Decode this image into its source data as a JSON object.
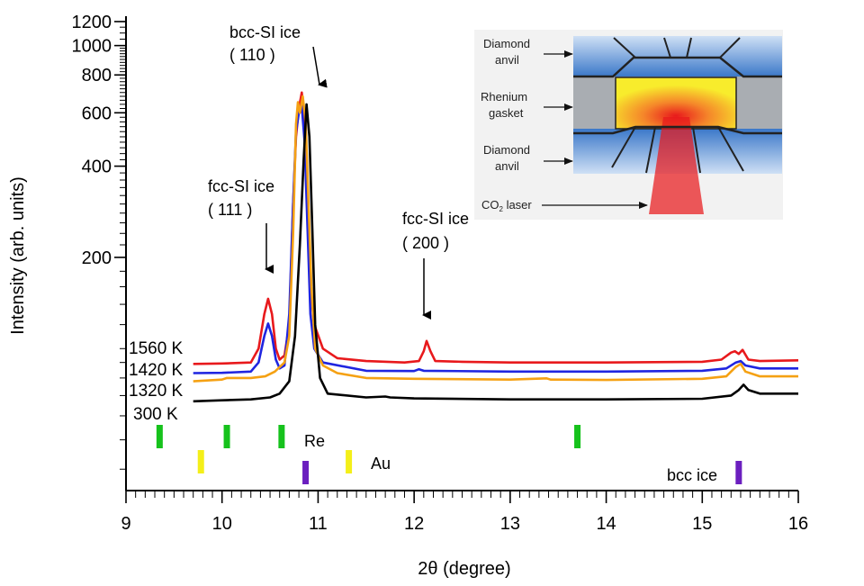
{
  "chart_data": {
    "type": "line",
    "xlabel": "2θ  (degree)",
    "ylabel": "Intensity (arb. units)",
    "xlim": [
      9,
      16
    ],
    "ylim": [
      34,
      1250
    ],
    "y_scale": "log",
    "x_ticks": [
      9,
      10,
      11,
      12,
      13,
      14,
      15,
      16
    ],
    "y_ticks": [
      200,
      400,
      600,
      800,
      1000,
      1200
    ],
    "grid": false,
    "series": [
      {
        "name": "1560 K",
        "color": "#e8191c",
        "points": [
          [
            9.7,
            89
          ],
          [
            10.0,
            89.3
          ],
          [
            10.3,
            90
          ],
          [
            10.38,
            100
          ],
          [
            10.44,
            130
          ],
          [
            10.48,
            146
          ],
          [
            10.52,
            130
          ],
          [
            10.56,
            100
          ],
          [
            10.6,
            92
          ],
          [
            10.65,
            95
          ],
          [
            10.7,
            120
          ],
          [
            10.74,
            300
          ],
          [
            10.77,
            500
          ],
          [
            10.8,
            620
          ],
          [
            10.83,
            700
          ],
          [
            10.86,
            560
          ],
          [
            10.89,
            300
          ],
          [
            10.92,
            160
          ],
          [
            10.96,
            120
          ],
          [
            11.05,
            100
          ],
          [
            11.2,
            93
          ],
          [
            11.5,
            91
          ],
          [
            11.9,
            90
          ],
          [
            12.05,
            91
          ],
          [
            12.1,
            98
          ],
          [
            12.13,
            106
          ],
          [
            12.17,
            98
          ],
          [
            12.22,
            91
          ],
          [
            12.5,
            90.5
          ],
          [
            13.0,
            90
          ],
          [
            14.0,
            90
          ],
          [
            15.0,
            90.5
          ],
          [
            15.2,
            92
          ],
          [
            15.3,
            97
          ],
          [
            15.34,
            98
          ],
          [
            15.38,
            96
          ],
          [
            15.42,
            99
          ],
          [
            15.48,
            92
          ],
          [
            15.6,
            91
          ],
          [
            16.0,
            91.5
          ]
        ]
      },
      {
        "name": "1420 K",
        "color": "#1f25e0",
        "points": [
          [
            9.7,
            83
          ],
          [
            10.0,
            83.2
          ],
          [
            10.3,
            84
          ],
          [
            10.38,
            90
          ],
          [
            10.44,
            110
          ],
          [
            10.48,
            121
          ],
          [
            10.52,
            110
          ],
          [
            10.56,
            92
          ],
          [
            10.6,
            86
          ],
          [
            10.65,
            88
          ],
          [
            10.7,
            130
          ],
          [
            10.74,
            300
          ],
          [
            10.77,
            520
          ],
          [
            10.8,
            600
          ],
          [
            10.83,
            630
          ],
          [
            10.86,
            480
          ],
          [
            10.89,
            250
          ],
          [
            10.92,
            130
          ],
          [
            10.96,
            100
          ],
          [
            11.05,
            90
          ],
          [
            11.5,
            84.5
          ],
          [
            12.0,
            84.3
          ],
          [
            12.05,
            85.5
          ],
          [
            12.1,
            84.5
          ],
          [
            13.0,
            84
          ],
          [
            14.0,
            84
          ],
          [
            15.0,
            84.5
          ],
          [
            15.25,
            86
          ],
          [
            15.35,
            90
          ],
          [
            15.4,
            91
          ],
          [
            15.45,
            88
          ],
          [
            15.6,
            86
          ],
          [
            16.0,
            86
          ]
        ]
      },
      {
        "name": "1320 K",
        "color": "#f5a113",
        "points": [
          [
            9.7,
            78
          ],
          [
            10.0,
            79
          ],
          [
            10.05,
            80
          ],
          [
            10.3,
            80
          ],
          [
            10.45,
            81
          ],
          [
            10.55,
            84
          ],
          [
            10.65,
            90
          ],
          [
            10.7,
            110
          ],
          [
            10.74,
            240
          ],
          [
            10.77,
            550
          ],
          [
            10.79,
            650
          ],
          [
            10.81,
            600
          ],
          [
            10.84,
            680
          ],
          [
            10.87,
            560
          ],
          [
            10.9,
            300
          ],
          [
            10.93,
            160
          ],
          [
            10.97,
            100
          ],
          [
            11.05,
            88
          ],
          [
            11.2,
            83
          ],
          [
            11.5,
            80
          ],
          [
            12.0,
            79.5
          ],
          [
            13.0,
            79
          ],
          [
            13.38,
            79.8
          ],
          [
            13.42,
            79
          ],
          [
            14.0,
            78.8
          ],
          [
            15.0,
            79.5
          ],
          [
            15.25,
            81
          ],
          [
            15.35,
            87
          ],
          [
            15.4,
            89
          ],
          [
            15.45,
            84
          ],
          [
            15.6,
            81
          ],
          [
            16.0,
            81
          ]
        ]
      },
      {
        "name": "300 K",
        "color": "#000000",
        "points": [
          [
            9.7,
            67
          ],
          [
            10.0,
            67.5
          ],
          [
            10.3,
            68
          ],
          [
            10.5,
            69
          ],
          [
            10.6,
            71
          ],
          [
            10.7,
            78
          ],
          [
            10.76,
            110
          ],
          [
            10.81,
            220
          ],
          [
            10.85,
            420
          ],
          [
            10.88,
            640
          ],
          [
            10.91,
            500
          ],
          [
            10.94,
            250
          ],
          [
            10.97,
            120
          ],
          [
            11.02,
            80
          ],
          [
            11.1,
            71
          ],
          [
            11.5,
            69
          ],
          [
            11.7,
            69.5
          ],
          [
            11.75,
            69
          ],
          [
            12.0,
            68.5
          ],
          [
            13.0,
            68
          ],
          [
            14.0,
            68
          ],
          [
            15.0,
            68.3
          ],
          [
            15.3,
            70
          ],
          [
            15.38,
            73
          ],
          [
            15.43,
            76
          ],
          [
            15.48,
            73
          ],
          [
            15.6,
            71
          ],
          [
            16.0,
            71
          ]
        ]
      }
    ],
    "annotations": [
      {
        "text": "bcc-SI ice",
        "text2": "( 110 )"
      },
      {
        "text": "fcc-SI ice",
        "text2": "( 111 )"
      },
      {
        "text": "fcc-SI ice",
        "text2": "( 200 )"
      }
    ],
    "reference_markers": [
      {
        "name": "Re",
        "color": "#16c21c",
        "x": [
          9.35,
          10.05,
          10.62,
          13.7
        ]
      },
      {
        "name": "Au",
        "color": "#f4ef19",
        "x": [
          9.78,
          11.32
        ]
      },
      {
        "name": "bcc ice",
        "color": "#6b1fbf",
        "x": [
          10.87,
          15.38
        ]
      }
    ],
    "inset_labels": [
      "Diamond",
      "anvil",
      "Rhenium",
      "gasket",
      "Diamond",
      "anvil",
      "CO",
      "2",
      " laser"
    ]
  }
}
